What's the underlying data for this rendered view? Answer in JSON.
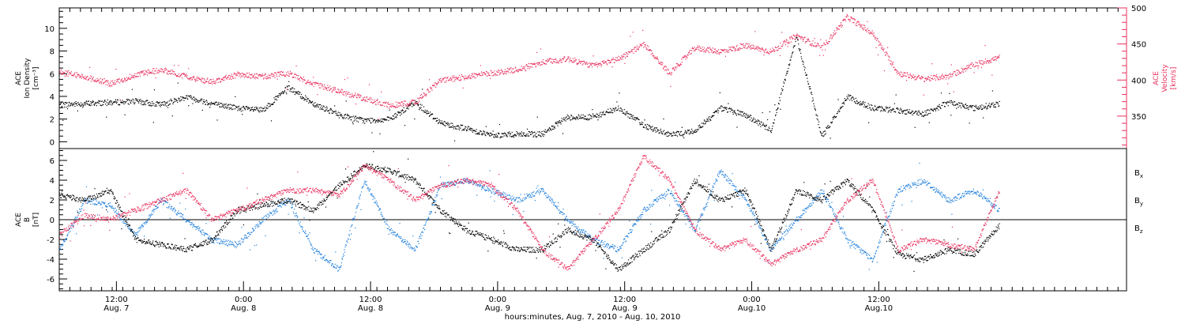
{
  "chart_data": [
    {
      "type": "scatter",
      "panel": "top",
      "ylabel_left": [
        "ACE",
        "Ion Density",
        "[cm⁻³]"
      ],
      "ylabel_right": [
        "ACE",
        "Velocity",
        "[km/s]"
      ],
      "ylim_left": [
        -0.6,
        11.8
      ],
      "ylim_right": [
        305,
        500
      ],
      "yticks_left": [
        0,
        2,
        4,
        6,
        8,
        10
      ],
      "yticks_right": [
        350,
        400,
        450,
        500
      ],
      "series": [
        {
          "axis": "left",
          "color": "#000000",
          "x": [
            0.0,
            0.1,
            0.2,
            0.3,
            0.4,
            0.5,
            0.6,
            0.7,
            0.8,
            0.9,
            1.0,
            1.1,
            1.2,
            1.3,
            1.4,
            1.5,
            1.6,
            1.7,
            1.8,
            1.9,
            2.0,
            2.1,
            2.2,
            2.3,
            2.4,
            2.5,
            2.6,
            2.7,
            2.8,
            2.9,
            3.0,
            3.1,
            3.2,
            3.3,
            3.4,
            3.5,
            3.6,
            3.7
          ],
          "values": [
            3.3,
            3.4,
            3.5,
            3.6,
            3.3,
            4.0,
            3.4,
            3.0,
            2.8,
            4.8,
            3.4,
            2.4,
            1.9,
            2.0,
            3.5,
            1.7,
            1.2,
            0.6,
            0.7,
            0.7,
            2.2,
            2.2,
            3.0,
            1.5,
            0.6,
            1.0,
            3.0,
            2.4,
            1.0,
            9.3,
            0.5,
            4.0,
            3.0,
            2.8,
            2.5,
            3.5,
            3.0,
            3.4
          ]
        },
        {
          "axis": "right",
          "color": "#e8305e",
          "x": [
            0.0,
            0.1,
            0.2,
            0.3,
            0.4,
            0.5,
            0.6,
            0.7,
            0.8,
            0.9,
            1.0,
            1.1,
            1.2,
            1.3,
            1.4,
            1.5,
            1.6,
            1.7,
            1.8,
            1.9,
            2.0,
            2.1,
            2.2,
            2.3,
            2.4,
            2.5,
            2.6,
            2.7,
            2.8,
            2.9,
            3.0,
            3.1,
            3.2,
            3.3,
            3.4,
            3.5,
            3.6,
            3.7
          ],
          "values": [
            412,
            405,
            395,
            408,
            415,
            405,
            398,
            408,
            405,
            410,
            395,
            385,
            375,
            365,
            370,
            400,
            405,
            410,
            415,
            425,
            430,
            420,
            430,
            450,
            410,
            445,
            440,
            448,
            440,
            462,
            445,
            488,
            465,
            410,
            402,
            406,
            422,
            432
          ]
        }
      ]
    },
    {
      "type": "scatter",
      "panel": "bottom",
      "ylabel_left": [
        "ACE",
        "B",
        "[nT]"
      ],
      "ylim": [
        -7.2,
        7.2
      ],
      "yticks": [
        -6,
        -4,
        -2,
        0,
        2,
        4,
        6
      ],
      "zero_line": true,
      "xticks": [
        {
          "x": 0.225,
          "label": [
            "12:00",
            "Aug. 7"
          ]
        },
        {
          "x": 0.725,
          "label": [
            "0:00",
            "Aug. 8"
          ]
        },
        {
          "x": 1.225,
          "label": [
            "12:00",
            "Aug. 8"
          ]
        },
        {
          "x": 1.725,
          "label": [
            "0:00",
            "Aug. 9"
          ]
        },
        {
          "x": 2.225,
          "label": [
            "12:00",
            "Aug. 9"
          ]
        },
        {
          "x": 2.725,
          "label": [
            "0:00",
            "Aug.10"
          ]
        },
        {
          "x": 3.225,
          "label": [
            "12:00",
            "Aug.10"
          ]
        }
      ],
      "xlim": [
        0.0,
        4.2
      ],
      "xlabel": "hours:minutes, Aug.  7, 2010 - Aug. 10, 2010",
      "series": [
        {
          "name": "Bx",
          "color": "#000000",
          "x": [
            0.0,
            0.1,
            0.2,
            0.3,
            0.4,
            0.5,
            0.6,
            0.7,
            0.8,
            0.9,
            1.0,
            1.1,
            1.2,
            1.3,
            1.4,
            1.5,
            1.6,
            1.7,
            1.8,
            1.9,
            2.0,
            2.1,
            2.2,
            2.3,
            2.4,
            2.5,
            2.6,
            2.7,
            2.8,
            2.9,
            3.0,
            3.1,
            3.2,
            3.3,
            3.4,
            3.5,
            3.6,
            3.7
          ],
          "values": [
            2.5,
            2.0,
            3.0,
            -2.0,
            -2.5,
            -3.0,
            -2.0,
            1.0,
            1.5,
            2.0,
            1.0,
            3.5,
            5.5,
            5.0,
            4.0,
            1.0,
            -1.0,
            -2.0,
            -3.0,
            -3.0,
            -1.0,
            -2.0,
            -5.0,
            -3.0,
            -1.0,
            4.0,
            2.0,
            3.0,
            -3.0,
            3.0,
            2.0,
            4.0,
            1.0,
            -3.5,
            -4.0,
            -3.0,
            -3.5,
            -0.5
          ]
        },
        {
          "name": "By",
          "color": "#1f7fdc",
          "x": [
            0.0,
            0.1,
            0.2,
            0.3,
            0.4,
            0.5,
            0.6,
            0.7,
            0.8,
            0.9,
            1.0,
            1.1,
            1.2,
            1.3,
            1.4,
            1.5,
            1.6,
            1.7,
            1.8,
            1.9,
            2.0,
            2.1,
            2.2,
            2.3,
            2.4,
            2.5,
            2.6,
            2.7,
            2.8,
            2.9,
            3.0,
            3.1,
            3.2,
            3.3,
            3.4,
            3.5,
            3.6,
            3.7
          ],
          "values": [
            -3.0,
            2.0,
            1.5,
            -1.5,
            2.0,
            0.0,
            -2.0,
            -2.5,
            0.0,
            2.0,
            -3.0,
            -5.0,
            4.0,
            -1.0,
            -3.0,
            3.5,
            4.0,
            3.0,
            2.0,
            3.0,
            0.0,
            -2.0,
            -3.0,
            1.0,
            3.0,
            -1.0,
            5.0,
            2.0,
            -3.0,
            0.0,
            3.0,
            -2.0,
            -4.0,
            3.0,
            4.0,
            2.0,
            3.0,
            1.0
          ]
        },
        {
          "name": "Bz",
          "color": "#e8305e",
          "x": [
            0.0,
            0.1,
            0.2,
            0.3,
            0.4,
            0.5,
            0.6,
            0.7,
            0.8,
            0.9,
            1.0,
            1.1,
            1.2,
            1.3,
            1.4,
            1.5,
            1.6,
            1.7,
            1.8,
            1.9,
            2.0,
            2.1,
            2.2,
            2.3,
            2.4,
            2.5,
            2.6,
            2.7,
            2.8,
            2.9,
            3.0,
            3.1,
            3.2,
            3.3,
            3.4,
            3.5,
            3.6,
            3.7
          ],
          "values": [
            -1.5,
            0.5,
            0.0,
            1.0,
            2.0,
            3.0,
            0.0,
            1.0,
            2.0,
            3.0,
            3.0,
            2.5,
            5.5,
            4.0,
            2.0,
            3.5,
            4.0,
            3.5,
            1.0,
            -3.0,
            -5.0,
            -2.0,
            1.0,
            6.5,
            4.0,
            -1.0,
            -3.0,
            -2.0,
            -4.5,
            -3.0,
            -2.0,
            2.0,
            4.0,
            -3.0,
            -2.0,
            -2.5,
            -3.0,
            3.0
          ]
        }
      ],
      "legend": [
        {
          "label": "B",
          "sub": "x",
          "color": "#000000"
        },
        {
          "label": "B",
          "sub": "y",
          "color": "#1f7fdc"
        },
        {
          "label": "B",
          "sub": "z",
          "color": "#e8305e"
        }
      ]
    }
  ]
}
